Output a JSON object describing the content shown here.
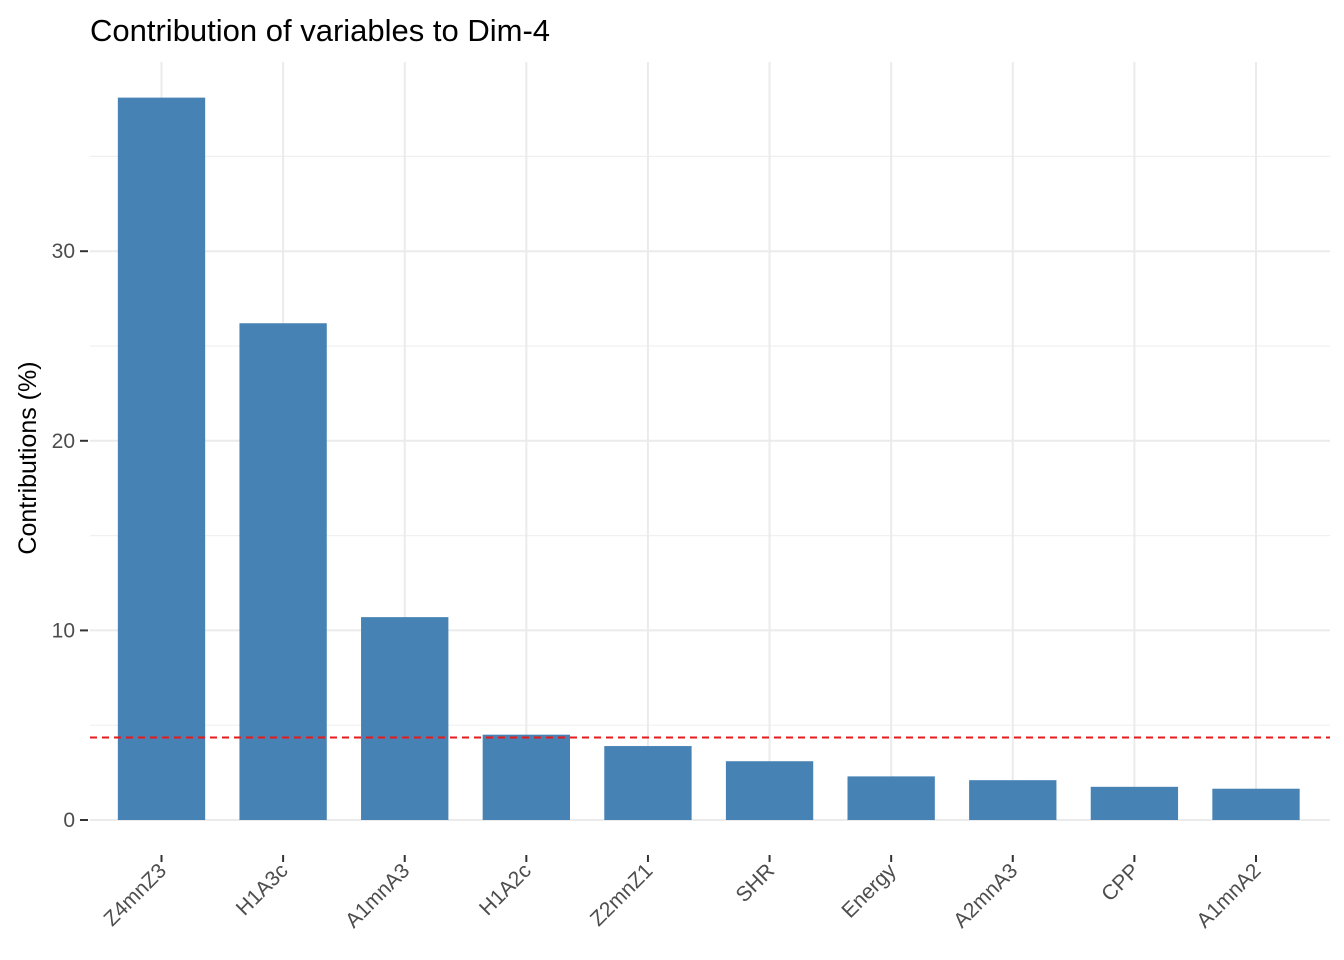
{
  "chart_data": {
    "type": "bar",
    "title": "Contribution of variables to Dim-4",
    "xlabel": "",
    "ylabel": "Contributions (%)",
    "categories": [
      "Z4mnZ3",
      "H1A3c",
      "A1mnA3",
      "H1A2c",
      "Z2mnZ1",
      "SHR",
      "Energy",
      "A2mnA3",
      "CPP",
      "A1mnA2"
    ],
    "values": [
      38.1,
      26.2,
      10.7,
      4.5,
      3.9,
      3.1,
      2.3,
      2.1,
      1.75,
      1.65
    ],
    "ylim": [
      0,
      40
    ],
    "yticks": [
      0,
      10,
      20,
      30
    ],
    "reference_line": {
      "value": 4.35,
      "style": "dashed",
      "color": "#e41a1c"
    },
    "bar_color": "#4682B4",
    "grid": true,
    "legend": "none"
  }
}
